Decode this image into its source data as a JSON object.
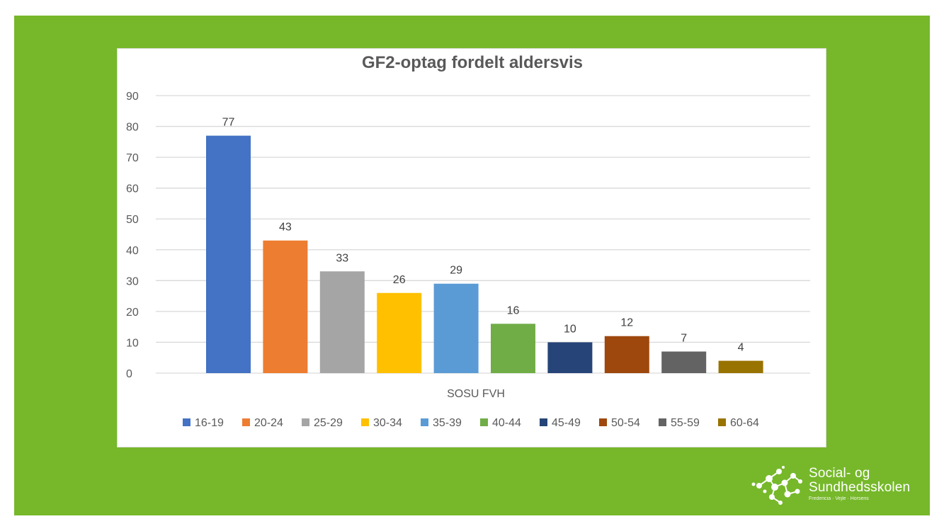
{
  "colors": {
    "slide_background": "#76b82a",
    "chart_background": "#ffffff",
    "gridline": "#d9d9d9"
  },
  "chart_data": {
    "type": "bar",
    "title": "GF2-optag fordelt aldersvis",
    "xlabel": "",
    "ylabel": "",
    "categories": [
      "SOSU FVH"
    ],
    "ylim": [
      0,
      90
    ],
    "yticks": [
      0,
      10,
      20,
      30,
      40,
      50,
      60,
      70,
      80,
      90
    ],
    "grid": true,
    "legend_position": "bottom",
    "series": [
      {
        "name": "16-19",
        "values": [
          77
        ],
        "color": "#4472c4"
      },
      {
        "name": "20-24",
        "values": [
          43
        ],
        "color": "#ed7d31"
      },
      {
        "name": "25-29",
        "values": [
          33
        ],
        "color": "#a5a5a5"
      },
      {
        "name": "30-34",
        "values": [
          26
        ],
        "color": "#ffc000"
      },
      {
        "name": "35-39",
        "values": [
          29
        ],
        "color": "#5b9bd5"
      },
      {
        "name": "40-44",
        "values": [
          16
        ],
        "color": "#70ad47"
      },
      {
        "name": "45-49",
        "values": [
          10
        ],
        "color": "#264478"
      },
      {
        "name": "50-54",
        "values": [
          12
        ],
        "color": "#9e480e"
      },
      {
        "name": "55-59",
        "values": [
          7
        ],
        "color": "#636363"
      },
      {
        "name": "60-64",
        "values": [
          4
        ],
        "color": "#997300"
      }
    ]
  },
  "logo": {
    "name_line1": "Social- og",
    "name_line2": "Sundhedsskolen",
    "tagline": "Fredericia · Vejle · Horsens",
    "icon": "molecule-dots-logo-icon"
  }
}
